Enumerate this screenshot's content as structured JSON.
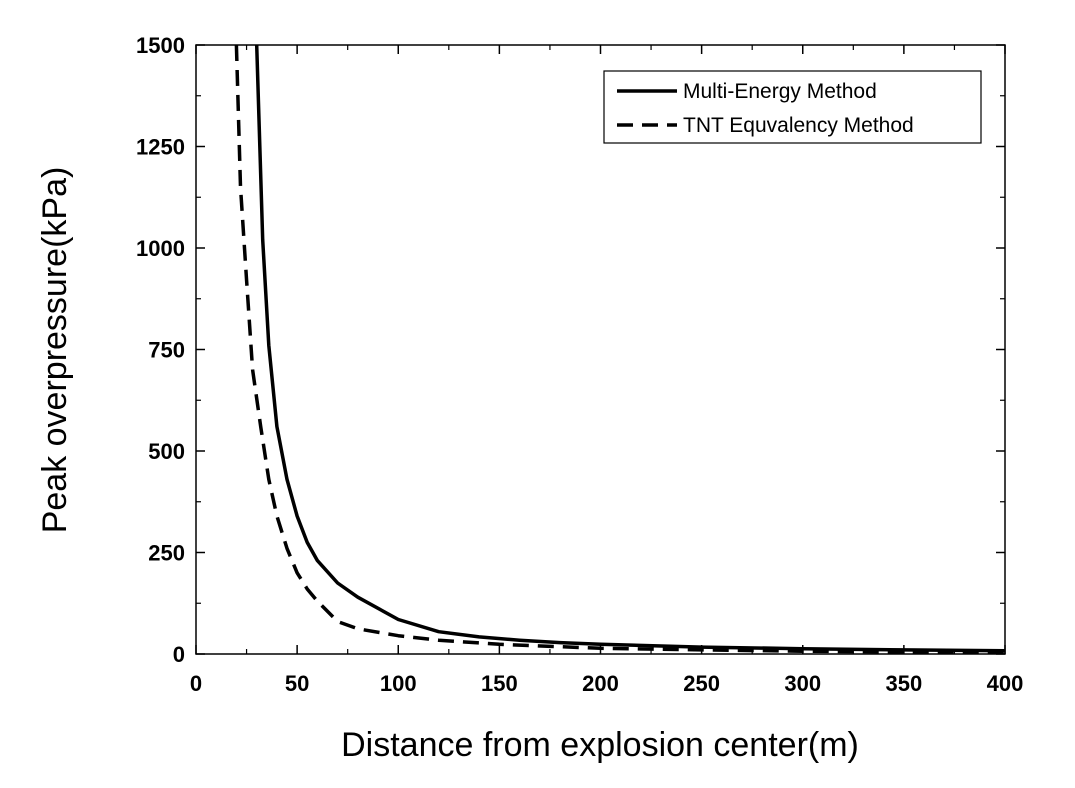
{
  "chart_data": {
    "type": "line",
    "xlabel": "Distance from explosion center(m)",
    "ylabel": "Peak overpressure(kPa)",
    "xlim": [
      0,
      400
    ],
    "ylim": [
      0,
      1500
    ],
    "xticks": [
      "0",
      "50",
      "100",
      "150",
      "200",
      "250",
      "300",
      "350",
      "400"
    ],
    "yticks": [
      "0",
      "250",
      "500",
      "750",
      "1000",
      "1250",
      "1500"
    ],
    "grid": false,
    "legend_position": "top-right",
    "series": [
      {
        "name": "Multi-Energy Method",
        "style": "solid",
        "x": [
          30,
          33,
          36,
          40,
          45,
          50,
          55,
          60,
          70,
          80,
          100,
          120,
          140,
          160,
          180,
          200,
          250,
          300,
          350,
          400
        ],
        "y": [
          1500,
          1020,
          760,
          560,
          430,
          340,
          275,
          230,
          175,
          140,
          85,
          55,
          42,
          34,
          28,
          24,
          17,
          13,
          10,
          8
        ]
      },
      {
        "name": "TNT Equvalency Method",
        "style": "dashed",
        "x": [
          20,
          22,
          25,
          28,
          32,
          36,
          40,
          45,
          50,
          55,
          60,
          70,
          80,
          100,
          120,
          150,
          200,
          250,
          300,
          350,
          400
        ],
        "y": [
          1500,
          1150,
          920,
          700,
          560,
          430,
          340,
          260,
          200,
          160,
          130,
          80,
          62,
          45,
          34,
          24,
          14,
          10,
          7,
          5,
          4
        ]
      }
    ]
  }
}
